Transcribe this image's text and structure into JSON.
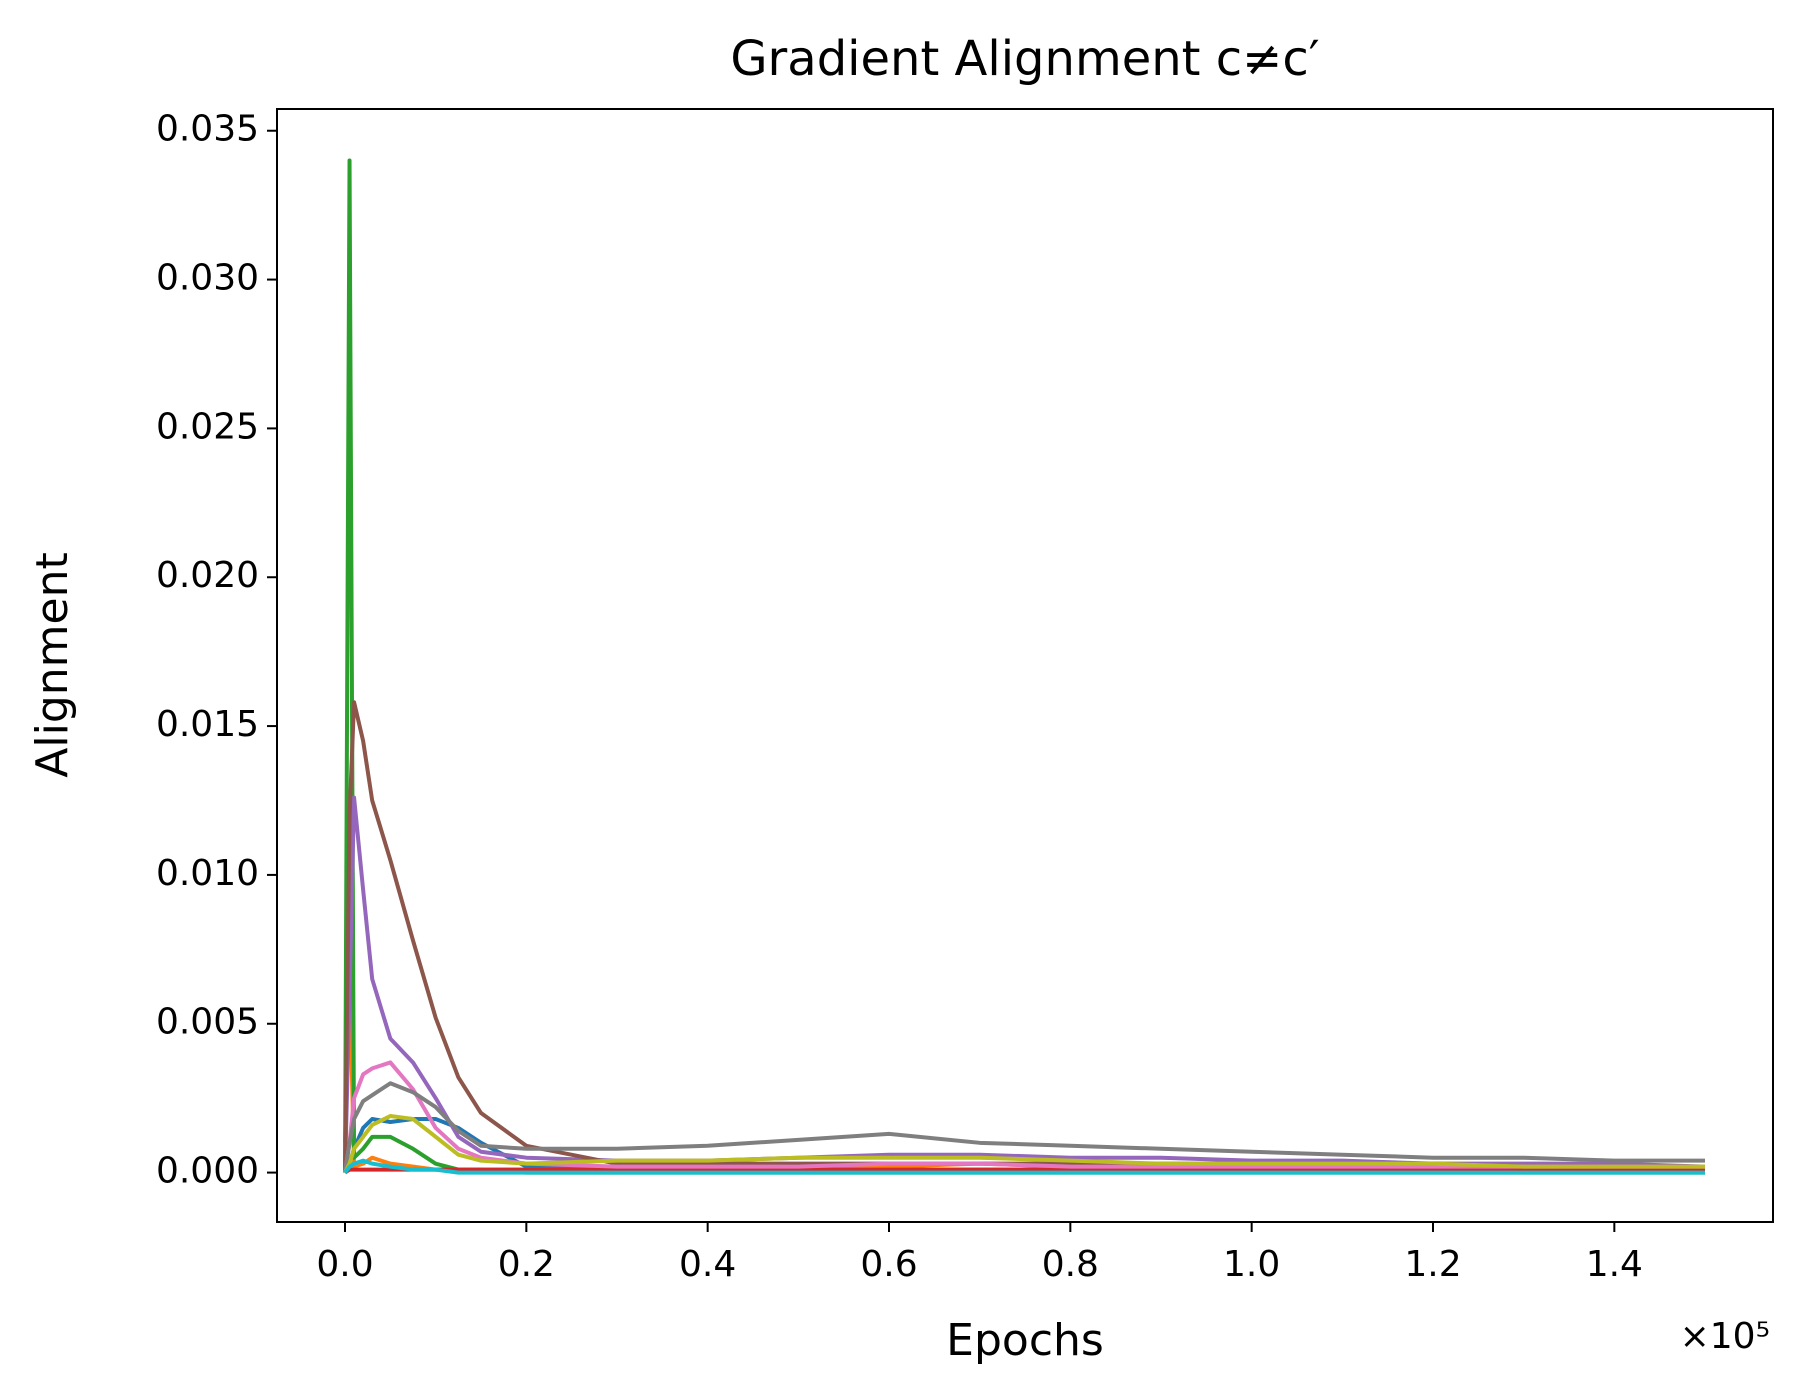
{
  "chart_data": {
    "type": "line",
    "title": "Gradient Alignment c≠c′",
    "x_label": "Epochs",
    "y_label": "Alignment",
    "x_offset_label": "×10⁵",
    "x": [
      0,
      0.005,
      0.01,
      0.02,
      0.03,
      0.05,
      0.075,
      0.1,
      0.125,
      0.15,
      0.2,
      0.3,
      0.4,
      0.5,
      0.6,
      0.7,
      0.8,
      0.9,
      1.0,
      1.1,
      1.2,
      1.3,
      1.4,
      1.5
    ],
    "series": [
      {
        "color": "#1f77b4",
        "values": [
          0,
          0.0003,
          0.0008,
          0.0015,
          0.0018,
          0.0017,
          0.0018,
          0.0018,
          0.0015,
          0.001,
          0.0002,
          0.0001,
          0.0001,
          0.0001,
          0.0001,
          0.0001,
          0.0001,
          0.0001,
          0.0001,
          0.0001,
          0.0001,
          0.0001,
          0.0001,
          0.0001
        ]
      },
      {
        "color": "#ff7f0e",
        "values": [
          0.001,
          0.0068,
          0.0002,
          0.0003,
          0.0005,
          0.0003,
          0.0002,
          0.0001,
          0.0001,
          0.0001,
          0.0001,
          0.0001,
          0.0002,
          0.0002,
          0.0002,
          0.0003,
          0.0002,
          0.0002,
          0.0002,
          0.0002,
          0.0002,
          0.0002,
          0.0002,
          0.0002
        ]
      },
      {
        "color": "#2ca02c",
        "values": [
          0,
          0.034,
          0.0005,
          0.0008,
          0.0012,
          0.0012,
          0.0008,
          0.0003,
          0.0001,
          0.0001,
          0,
          0,
          0,
          0,
          0,
          0,
          0,
          0,
          0,
          0,
          0,
          0,
          0,
          0
        ]
      },
      {
        "color": "#d62728",
        "values": [
          0,
          0.0001,
          0.0001,
          0.0001,
          0.0001,
          0.0001,
          0.0001,
          0.0001,
          0.0001,
          0.0001,
          0.0001,
          0.0001,
          0.0001,
          0.0001,
          0.0001,
          0.0001,
          0.0001,
          0.0001,
          0.0001,
          0.0001,
          0.0001,
          0.0001,
          0.0001,
          0.0001
        ]
      },
      {
        "color": "#9467bd",
        "values": [
          0,
          0.006,
          0.0126,
          0.0095,
          0.0065,
          0.0045,
          0.0037,
          0.0025,
          0.0012,
          0.0007,
          0.0005,
          0.0004,
          0.0004,
          0.0005,
          0.0006,
          0.0006,
          0.0005,
          0.0005,
          0.0004,
          0.0004,
          0.0003,
          0.0003,
          0.0003,
          0.0002
        ]
      },
      {
        "color": "#8c564b",
        "values": [
          0,
          0.012,
          0.0158,
          0.0145,
          0.0125,
          0.0105,
          0.0078,
          0.0052,
          0.0032,
          0.002,
          0.0009,
          0.0003,
          0.0003,
          0.0003,
          0.0003,
          0.0003,
          0.0003,
          0.0003,
          0.0003,
          0.0003,
          0.0003,
          0.0002,
          0.0002,
          0.0002
        ]
      },
      {
        "color": "#e377c2",
        "values": [
          0,
          0.001,
          0.0025,
          0.0033,
          0.0035,
          0.0037,
          0.0028,
          0.0015,
          0.0008,
          0.0005,
          0.0003,
          0.0002,
          0.0002,
          0.0002,
          0.0003,
          0.0003,
          0.0002,
          0.0002,
          0.0002,
          0.0002,
          0.0002,
          0.0002,
          0.0002,
          0.0002
        ]
      },
      {
        "color": "#7f7f7f",
        "values": [
          0,
          0.001,
          0.0018,
          0.0024,
          0.0026,
          0.003,
          0.0027,
          0.0022,
          0.0014,
          0.0009,
          0.0008,
          0.0008,
          0.0009,
          0.0011,
          0.0013,
          0.001,
          0.0009,
          0.0008,
          0.0007,
          0.0006,
          0.0005,
          0.0005,
          0.0004,
          0.0004
        ]
      },
      {
        "color": "#bcbd22",
        "values": [
          0,
          0.0003,
          0.0008,
          0.0012,
          0.0016,
          0.0019,
          0.0018,
          0.0012,
          0.0006,
          0.0004,
          0.0003,
          0.0004,
          0.0004,
          0.0005,
          0.0005,
          0.0005,
          0.0004,
          0.0003,
          0.0003,
          0.0003,
          0.0003,
          0.0002,
          0.0002,
          0.0002
        ]
      },
      {
        "color": "#17becf",
        "values": [
          0,
          0.0002,
          0.0003,
          0.0004,
          0.0003,
          0.0002,
          0.0001,
          0.0001,
          0,
          0,
          0,
          0,
          0,
          0,
          0,
          0,
          0,
          0,
          0,
          0,
          0,
          0,
          0,
          0
        ]
      }
    ],
    "xlim": [
      -0.075,
      1.575
    ],
    "xticks": [
      {
        "value": 0,
        "label": "0.0"
      },
      {
        "value": 0.2,
        "label": "0.2"
      },
      {
        "value": 0.4,
        "label": "0.4"
      },
      {
        "value": 0.6,
        "label": "0.6"
      },
      {
        "value": 0.8,
        "label": "0.8"
      },
      {
        "value": 1.0,
        "label": "1.0"
      },
      {
        "value": 1.2,
        "label": "1.2"
      },
      {
        "value": 1.4,
        "label": "1.4"
      }
    ],
    "ylim": [
      -0.00166,
      0.03573
    ],
    "yticks": [
      {
        "value": 0,
        "label": "0.000"
      },
      {
        "value": 0.005,
        "label": "0.005"
      },
      {
        "value": 0.01,
        "label": "0.010"
      },
      {
        "value": 0.015,
        "label": "0.015"
      },
      {
        "value": 0.02,
        "label": "0.020"
      },
      {
        "value": 0.025,
        "label": "0.025"
      },
      {
        "value": 0.03,
        "label": "0.030"
      },
      {
        "value": 0.035,
        "label": "0.035"
      }
    ],
    "grid": false
  }
}
